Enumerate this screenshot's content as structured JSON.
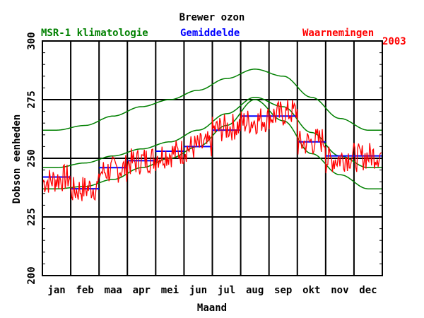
{
  "chart_data": {
    "type": "line",
    "title": "Brewer ozon",
    "xlabel": "Maand",
    "ylabel": "Dobson eenheden",
    "ylim": [
      200,
      300
    ],
    "yticks": [
      200,
      225,
      250,
      275,
      300
    ],
    "categories": [
      "jan",
      "feb",
      "maa",
      "apr",
      "mei",
      "jun",
      "jul",
      "aug",
      "sep",
      "okt",
      "nov",
      "dec"
    ],
    "grid": true,
    "legend_position": "top",
    "legend": [
      {
        "label": "MSR-1 klimatologie",
        "color": "#008000"
      },
      {
        "label": "Gemiddelde",
        "color": "#0000ff"
      },
      {
        "label": "Waarnemingen",
        "color": "#ff0000"
      }
    ],
    "year_label": "2003",
    "climatology": {
      "name": "MSR-1 klimatologie",
      "color": "#008000",
      "month_center": [
        0.5,
        1.5,
        2.5,
        3.5,
        4.5,
        5.5,
        6.5,
        7.5,
        8.5,
        9.5,
        10.5,
        11.5
      ],
      "upper": [
        262,
        264,
        268,
        272,
        275,
        279,
        284,
        288,
        285,
        276,
        267,
        262
      ],
      "mean": [
        246,
        248,
        251,
        254,
        257,
        262,
        269,
        276,
        272,
        261,
        251,
        246
      ],
      "lower": [
        237,
        238,
        241,
        246,
        250,
        255,
        264,
        275,
        266,
        252,
        243,
        237
      ]
    },
    "series": [
      {
        "name": "Gemiddelde",
        "color": "#0000ff",
        "type": "monthly-step",
        "values": [
          242,
          237,
          246,
          249,
          253,
          255,
          262,
          268,
          268,
          257,
          251,
          251
        ]
      },
      {
        "name": "Waarnemingen",
        "color": "#ff0000",
        "type": "daily",
        "monthly_levels": [
          241,
          237,
          245,
          249,
          252,
          255,
          263,
          266,
          269,
          257,
          250,
          251
        ],
        "noise_amplitude": 6
      }
    ]
  }
}
